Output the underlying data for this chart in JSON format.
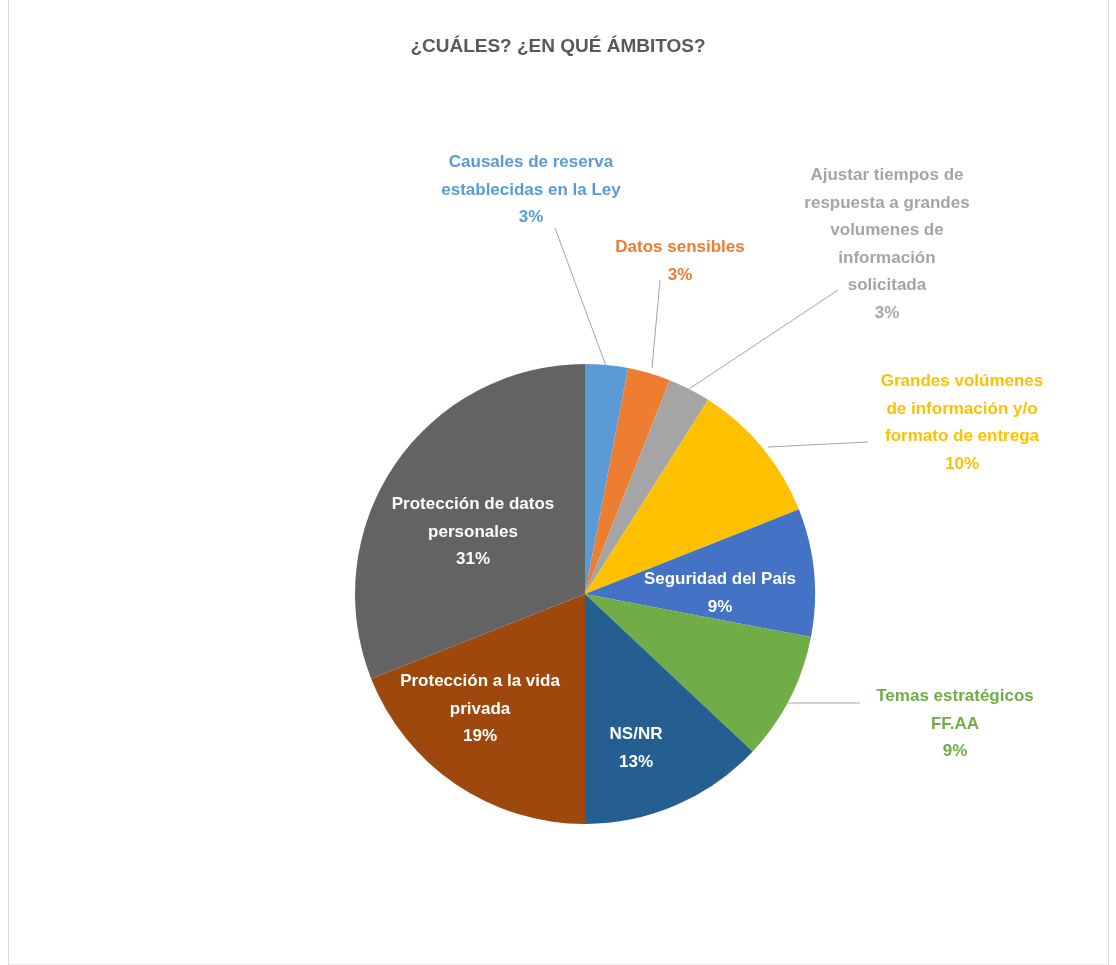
{
  "chart_data": {
    "type": "pie",
    "title": "¿CUÁLES? ¿EN QUÉ ÁMBITOS?",
    "categories": [
      "Causales de reserva establecidas en la Ley",
      "Datos sensibles",
      "Ajustar tiempos de respuesta a grandes volumenes de información solicitada",
      "Grandes volúmenes de información y/o formato de entrega",
      "Seguridad del País",
      "Temas estratégicos FF.AA",
      "NS/NR",
      "Protección a la vida privada",
      "Protección de datos personales"
    ],
    "values": [
      3,
      3,
      3,
      10,
      9,
      9,
      13,
      19,
      31
    ],
    "value_labels": [
      "3%",
      "3%",
      "3%",
      "10%",
      "9%",
      "9%",
      "13%",
      "19%",
      "31%"
    ],
    "colors": [
      "#5b9bd5",
      "#ed7d31",
      "#a5a5a5",
      "#ffc000",
      "#4472c4",
      "#70ad47",
      "#255e91",
      "#9e480e",
      "#636363"
    ]
  }
}
